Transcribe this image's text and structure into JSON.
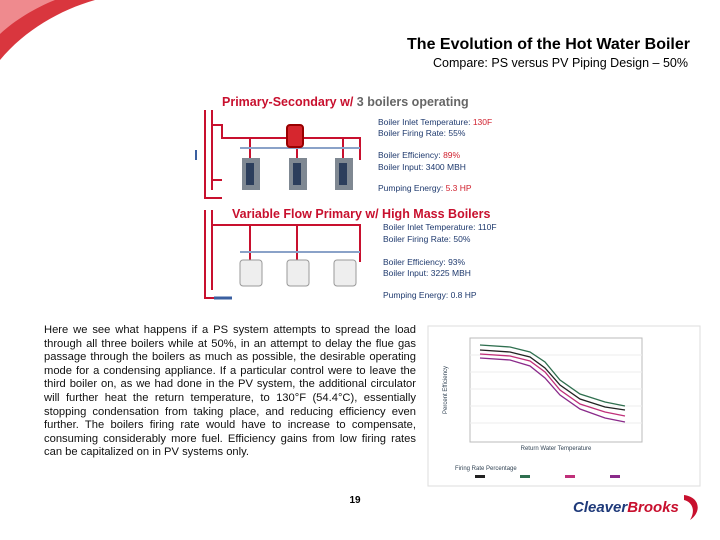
{
  "header": {
    "title": "The Evolution of the Hot Water Boiler",
    "subtitle": "Compare: PS versus PV Piping Design – 50%"
  },
  "diagrams": [
    {
      "heading": [
        "Primary-Secondary w/",
        "3 boilers operating"
      ],
      "specs": [
        {
          "label": "Boiler Inlet Temperature:",
          "value": "130F"
        },
        {
          "label": "Boiler Firing Rate:",
          "value": "55%"
        },
        {
          "label": "Boiler Efficiency:",
          "value": "89%"
        },
        {
          "label": "Boiler Input:",
          "value": "3400 MBH"
        },
        {
          "label": "Pumping Energy:",
          "value": "5.3 HP"
        }
      ]
    },
    {
      "heading": [
        "Variable Flow Primary w/ High Mass Boilers"
      ],
      "specs": [
        {
          "label": "Boiler Inlet Temperature:",
          "value": "110F"
        },
        {
          "label": "Boiler Firing Rate:",
          "value": "50%"
        },
        {
          "label": "Boiler Efficiency:",
          "value": "93%"
        },
        {
          "label": "Boiler Input:",
          "value": "3225 MBH"
        },
        {
          "label": "Pumping Energy:",
          "value": "0.8 HP"
        }
      ]
    }
  ],
  "body": "Here we see what happens if a PS system attempts to spread the load through all three boilers while at 50%, in an attempt to delay the flue gas passage through the boilers as much as possible, the desirable operating mode for a condensing appliance. If a particular control were to leave the third boiler on, as we had done in the PV system, the additional circulator will further heat the return temperature, to 130°F (54.4°C), essentially stopping condensation from taking place, and reducing efficiency even further. The boilers firing rate would have to increase to compensate, consuming considerably more fuel. Efficiency gains from low firing rates can be capitalized on in PV systems only.",
  "chart": {
    "y_label": "Percent Efficiency",
    "x_label": "Return Water Temperature",
    "legend_title": "Firing Rate Percentage"
  },
  "page_number": "19",
  "logo": [
    "Cleaver",
    "Brooks"
  ]
}
